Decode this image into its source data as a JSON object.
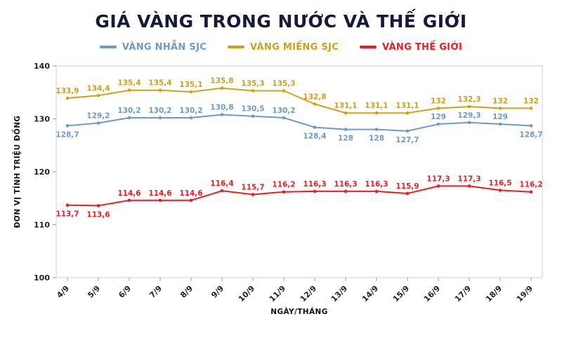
{
  "title": "GIÁ VÀNG TRONG NƯỚC VÀ THẾ GIỚI",
  "legend": [
    {
      "label": "VÀNG NHẪN SJC",
      "color": "#6d9bc3"
    },
    {
      "label": "VÀNG MIẾNG SJC",
      "color": "#cfa118"
    },
    {
      "label": "VÀNG THẾ GIỚI",
      "color": "#ed1c24"
    }
  ],
  "chart_data": {
    "type": "line",
    "title": "GIÁ VÀNG TRONG NƯỚC VÀ THẾ GIỚI",
    "categories": [
      "4/9",
      "5/9",
      "6/9",
      "7/9",
      "8/9",
      "9/9",
      "10/9",
      "11/9",
      "12/9",
      "13/9",
      "14/9",
      "15/9",
      "16/9",
      "17/9",
      "18/9",
      "19/9"
    ],
    "series": [
      {
        "name": "VÀNG NHẪN SJC",
        "color": "#6d9bc3",
        "values": [
          128.7,
          129.2,
          130.2,
          130.2,
          130.2,
          130.8,
          130.5,
          130.2,
          128.4,
          128,
          128,
          127.7,
          129,
          129.3,
          129,
          128.7
        ],
        "labels": [
          "128,7",
          "129,2",
          "130,2",
          "130,2",
          "130,2",
          "130,8",
          "130,5",
          "130,2",
          "128,4",
          "128",
          "128",
          "127,7",
          "129",
          "129,3",
          "129",
          "128,7"
        ]
      },
      {
        "name": "VÀNG MIẾNG SJC",
        "color": "#cfa118",
        "values": [
          133.9,
          134.4,
          135.4,
          135.4,
          135.1,
          135.8,
          135.3,
          135.3,
          132.8,
          131.1,
          131.1,
          131.1,
          132,
          132.3,
          132,
          132
        ],
        "labels": [
          "133,9",
          "134,4",
          "135,4",
          "135,4",
          "135,1",
          "135,8",
          "135,3",
          "135,3",
          "132,8",
          "131,1",
          "131,1",
          "131,1",
          "132",
          "132,3",
          "132",
          "132"
        ]
      },
      {
        "name": "VÀNG THẾ GIỚI",
        "color": "#ed1c24",
        "values": [
          113.7,
          113.6,
          114.6,
          114.6,
          114.6,
          116.4,
          115.7,
          116.2,
          116.3,
          116.3,
          116.3,
          115.9,
          117.3,
          117.3,
          116.5,
          116.2
        ],
        "labels": [
          "113,7",
          "113,6",
          "114,6",
          "114,6",
          "114,6",
          "116,4",
          "115,7",
          "116,2",
          "116,3",
          "116,3",
          "116,3",
          "115,9",
          "117,3",
          "117,3",
          "116,5",
          "116,2"
        ]
      }
    ],
    "xlabel": "NGÀY/THÁNG",
    "ylabel": "ĐƠN VỊ TÍNH TRIỆU ĐỒNG",
    "ylim": [
      100,
      140
    ],
    "yticks": [
      100,
      110,
      120,
      130,
      140
    ],
    "legend_position": "top",
    "grid": false
  }
}
